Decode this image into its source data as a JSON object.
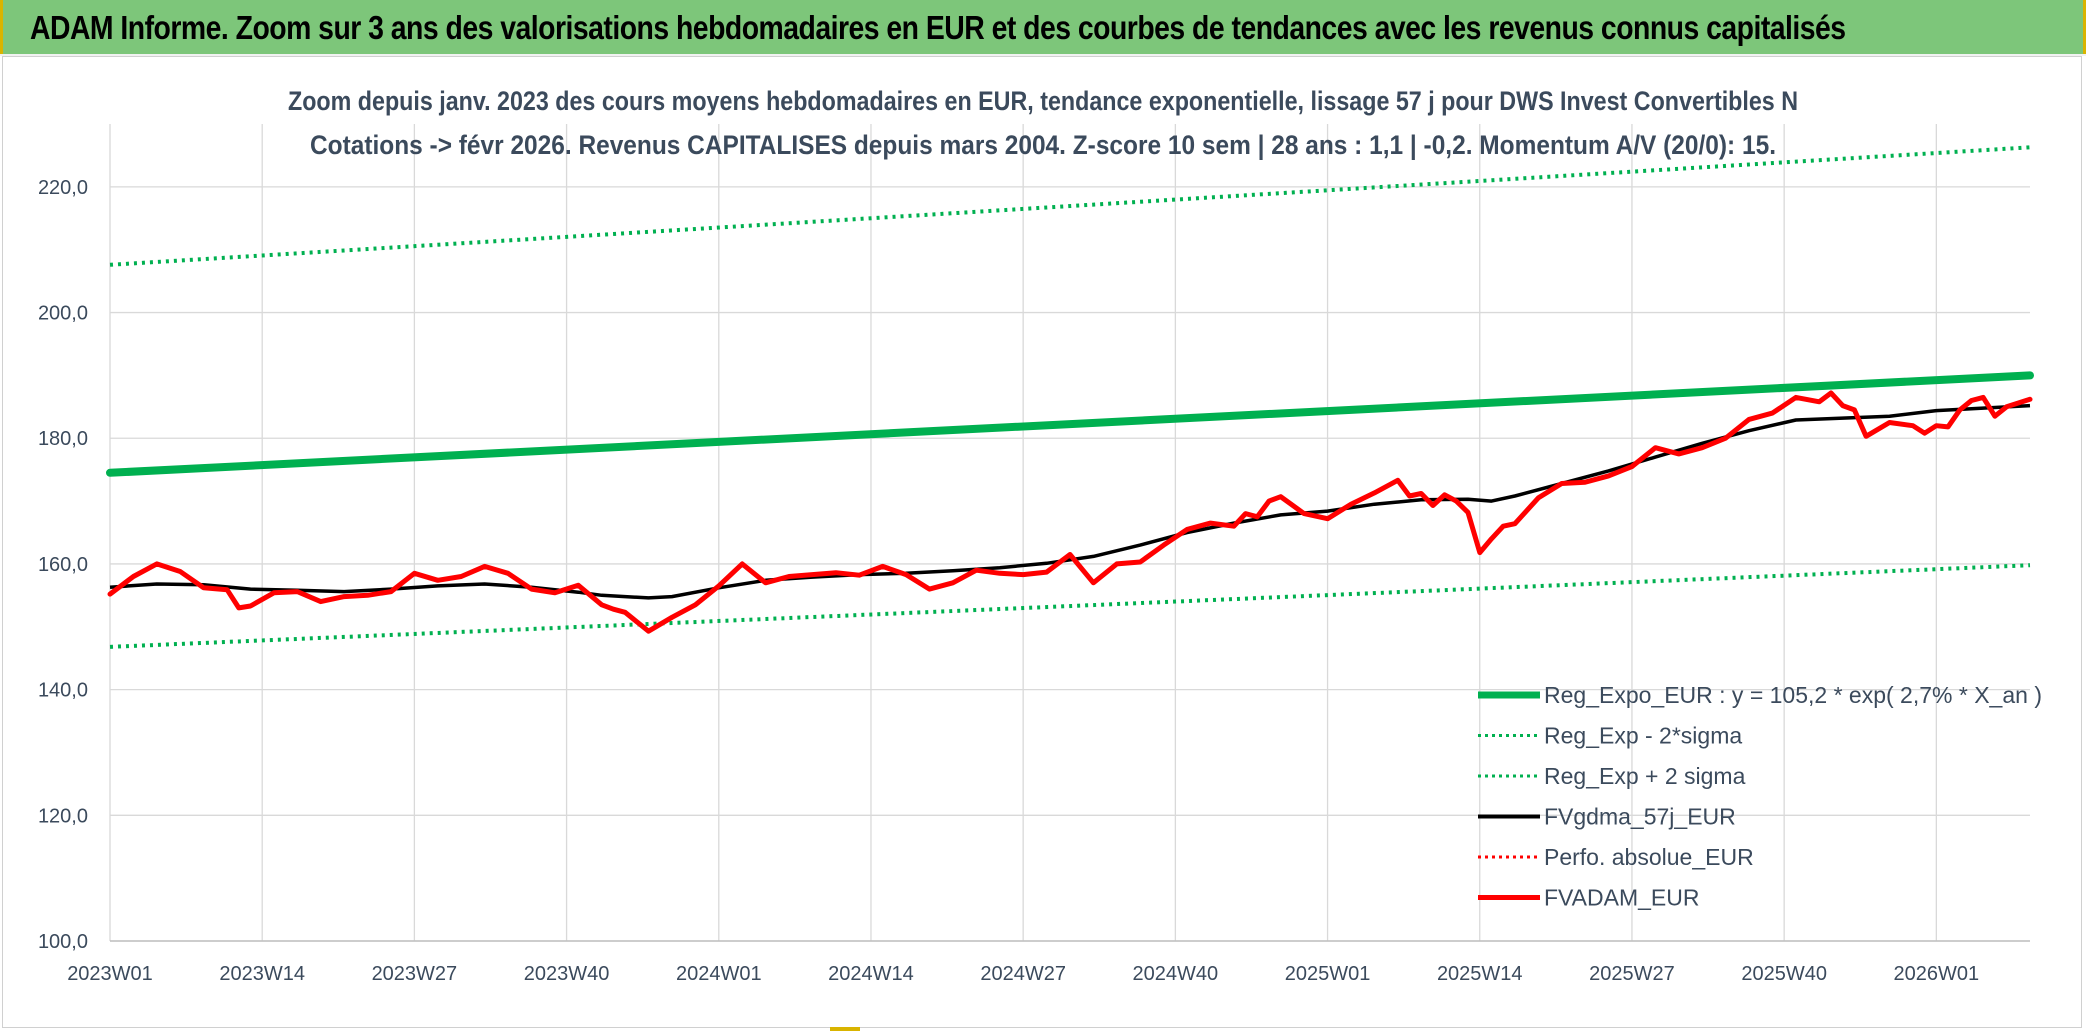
{
  "banner": {
    "title": "ADAM Informe. Zoom sur 3 ans des valorisations hebdomadaires en EUR et des courbes de tendances avec les revenus connus capitalisés"
  },
  "chart_data": {
    "type": "line",
    "title_line1": "Zoom depuis janv. 2023 des cours moyens hebdomadaires en EUR, tendance exponentielle, lissage 57 j pour DWS Invest Convertibles N",
    "title_line2": "Cotations -> févr 2026. Revenus CAPITALISES depuis mars 2004. Z-score 10 sem | 28 ans : 1,1 | -0,2. Momentum A/V (20/0): 15.",
    "ylim": [
      100,
      230
    ],
    "y_ticks": [
      100,
      120,
      140,
      160,
      180,
      200,
      220
    ],
    "y_tick_labels": [
      "100,0",
      "120,0",
      "140,0",
      "160,0",
      "180,0",
      "200,0",
      "220,0"
    ],
    "x_ticks": [
      0,
      13,
      26,
      39,
      52,
      65,
      78,
      91,
      104,
      117,
      130,
      143,
      156
    ],
    "x_tick_labels": [
      "2023W01",
      "2023W14",
      "2023W27",
      "2023W40",
      "2024W01",
      "2024W14",
      "2024W27",
      "2024W40",
      "2025W01",
      "2025W14",
      "2025W27",
      "2025W40",
      "2026W01"
    ],
    "x_range": [
      0,
      164
    ],
    "grid": true,
    "legend_position": "bottom-right",
    "legend": [
      {
        "label": "Reg_Expo_EUR : y = 105,2 * exp( 2,7% *  X_an )",
        "style": "thick",
        "color": "#00b050"
      },
      {
        "label": "Reg_Exp - 2*sigma",
        "style": "dotted",
        "color": "#00b050"
      },
      {
        "label": "Reg_Exp + 2 sigma",
        "style": "dotted",
        "color": "#00b050"
      },
      {
        "label": "FVgdma_57j_EUR",
        "style": "solid",
        "color": "#000000"
      },
      {
        "label": "Perfo. absolue_EUR",
        "style": "dotted",
        "color": "#ff0000"
      },
      {
        "label": "FVADAM_EUR",
        "style": "thick",
        "color": "#ff0000"
      }
    ],
    "series": [
      {
        "name": "Reg_Expo_EUR",
        "color": "#00b050",
        "style": "thick",
        "x": [
          0,
          164
        ],
        "values": [
          174.5,
          190.0
        ]
      },
      {
        "name": "Reg_Exp - 2*sigma",
        "color": "#00b050",
        "style": "dotted",
        "x": [
          0,
          164
        ],
        "values": [
          146.8,
          159.8
        ]
      },
      {
        "name": "Reg_Exp + 2 sigma",
        "color": "#00b050",
        "style": "dotted",
        "x": [
          0,
          164
        ],
        "values": [
          207.6,
          226.3
        ]
      },
      {
        "name": "FVgdma_57j_EUR",
        "color": "#000000",
        "style": "solid",
        "x": [
          0,
          4,
          8,
          12,
          16,
          20,
          24,
          28,
          32,
          36,
          40,
          42,
          44,
          46,
          48,
          52,
          56,
          60,
          64,
          68,
          72,
          76,
          80,
          84,
          88,
          92,
          96,
          100,
          104,
          108,
          112,
          116,
          118,
          120,
          124,
          128,
          132,
          136,
          140,
          144,
          148,
          152,
          156,
          160,
          164
        ],
        "values": [
          156.3,
          156.8,
          156.7,
          156.0,
          155.8,
          155.6,
          156.0,
          156.5,
          156.8,
          156.3,
          155.5,
          155.0,
          154.8,
          154.6,
          154.8,
          156.2,
          157.4,
          157.9,
          158.3,
          158.5,
          158.9,
          159.4,
          160.1,
          161.2,
          163.0,
          165.0,
          166.5,
          167.8,
          168.4,
          169.5,
          170.2,
          170.3,
          170.0,
          170.8,
          172.8,
          174.8,
          177.0,
          179.2,
          181.2,
          182.9,
          183.2,
          183.5,
          184.4,
          184.8,
          185.2
        ]
      },
      {
        "name": "Perfo. absolue_EUR",
        "color": "#ff0000",
        "style": "dotted",
        "x": [],
        "values": []
      },
      {
        "name": "FVADAM_EUR",
        "color": "#ff0000",
        "style": "thick",
        "x": [
          0,
          2,
          4,
          6,
          8,
          10,
          11,
          12,
          14,
          16,
          18,
          20,
          22,
          24,
          26,
          28,
          30,
          32,
          34,
          36,
          38,
          40,
          42,
          43,
          44,
          46,
          48,
          50,
          52,
          54,
          56,
          58,
          60,
          62,
          64,
          66,
          68,
          70,
          72,
          74,
          76,
          78,
          80,
          82,
          84,
          86,
          88,
          90,
          92,
          94,
          96,
          97,
          98,
          99,
          100,
          102,
          104,
          106,
          108,
          110,
          111,
          112,
          113,
          114,
          115,
          116,
          117,
          118,
          119,
          120,
          122,
          124,
          126,
          128,
          130,
          132,
          134,
          136,
          138,
          140,
          142,
          144,
          146,
          147,
          148,
          149,
          150,
          152,
          154,
          155,
          156,
          157,
          158,
          159,
          160,
          161,
          162,
          164
        ],
        "values": [
          155.2,
          158.0,
          160.0,
          158.8,
          156.2,
          155.9,
          153.0,
          153.3,
          155.4,
          155.6,
          154.0,
          154.8,
          155.0,
          155.6,
          158.5,
          157.4,
          158.0,
          159.6,
          158.5,
          156.0,
          155.4,
          156.6,
          153.5,
          152.8,
          152.3,
          149.3,
          151.5,
          153.5,
          156.5,
          160.0,
          157.0,
          158.0,
          158.3,
          158.6,
          158.2,
          159.6,
          158.3,
          156.0,
          157.0,
          159.0,
          158.5,
          158.3,
          158.7,
          161.5,
          157.0,
          160.0,
          160.3,
          163.0,
          165.5,
          166.5,
          166.0,
          168.0,
          167.5,
          170.0,
          170.7,
          168.0,
          167.2,
          169.5,
          171.3,
          173.3,
          170.8,
          171.2,
          169.3,
          171.0,
          170.0,
          168.2,
          161.8,
          164.0,
          166.0,
          166.4,
          170.5,
          172.8,
          173.0,
          174.0,
          175.5,
          178.5,
          177.5,
          178.5,
          180.0,
          183.0,
          184.0,
          186.5,
          185.8,
          187.2,
          185.2,
          184.5,
          180.3,
          182.5,
          182.0,
          180.8,
          182.0,
          181.8,
          184.5,
          186.0,
          186.5,
          183.5,
          185.0,
          186.2
        ]
      }
    ]
  }
}
